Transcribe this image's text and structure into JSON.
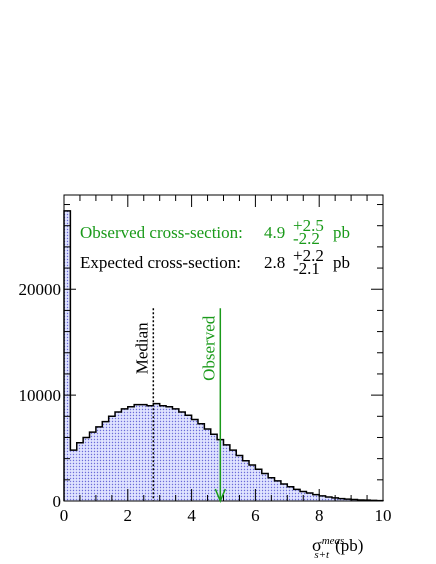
{
  "chart_data": {
    "type": "histogram",
    "bins": [
      0,
      0.2,
      0.4,
      0.6,
      0.8,
      1,
      1.2,
      1.4,
      1.6,
      1.8,
      2,
      2.2,
      2.4,
      2.6,
      2.8,
      3,
      3.2,
      3.4,
      3.6,
      3.8,
      4,
      4.2,
      4.4,
      4.6,
      4.8,
      5,
      5.2,
      5.4,
      5.6,
      5.8,
      6,
      6.2,
      6.4,
      6.6,
      6.8,
      7,
      7.2,
      7.4,
      7.6,
      7.8,
      8,
      8.2,
      8.4,
      8.6,
      8.8,
      9,
      9.2,
      9.4,
      9.6,
      9.8,
      10
    ],
    "values": [
      27400,
      4800,
      5500,
      6000,
      6500,
      7000,
      7500,
      8000,
      8400,
      8700,
      8900,
      9100,
      9100,
      9000,
      9200,
      9000,
      8900,
      8700,
      8400,
      8100,
      7700,
      7300,
      6800,
      6300,
      5800,
      5300,
      4800,
      4300,
      3800,
      3400,
      3000,
      2600,
      2200,
      1900,
      1600,
      1350,
      1100,
      900,
      750,
      600,
      480,
      380,
      300,
      230,
      180,
      140,
      100,
      80,
      60,
      40
    ],
    "color": "#5a5ad0",
    "xlim": [
      0,
      10
    ],
    "ylim": [
      0,
      28900
    ],
    "xticks": [
      0,
      2,
      4,
      6,
      8,
      10
    ],
    "yticks": [
      0,
      10000,
      20000
    ],
    "xlabel": {
      "symbol": "σ",
      "sup": "meas",
      "sub": "s+t",
      "unit": "(pb)"
    },
    "annotations": [
      {
        "text": "Observed cross-section:",
        "value": "4.9",
        "plus": "+2.5",
        "minus": "-2.2",
        "unit": "pb",
        "color": "#1a9a1a"
      },
      {
        "text": "Expected cross-section:",
        "value": "2.8",
        "plus": "+2.2",
        "minus": "-2.1",
        "unit": "pb",
        "color": "#000000"
      }
    ],
    "markers": [
      {
        "label": "Median",
        "x": 2.8,
        "top": 18200,
        "color": "#000000",
        "dotted": true,
        "arrow": false
      },
      {
        "label": "Observed",
        "x": 4.9,
        "top": 18200,
        "color": "#1a9a1a",
        "dotted": false,
        "arrow": true
      }
    ]
  }
}
